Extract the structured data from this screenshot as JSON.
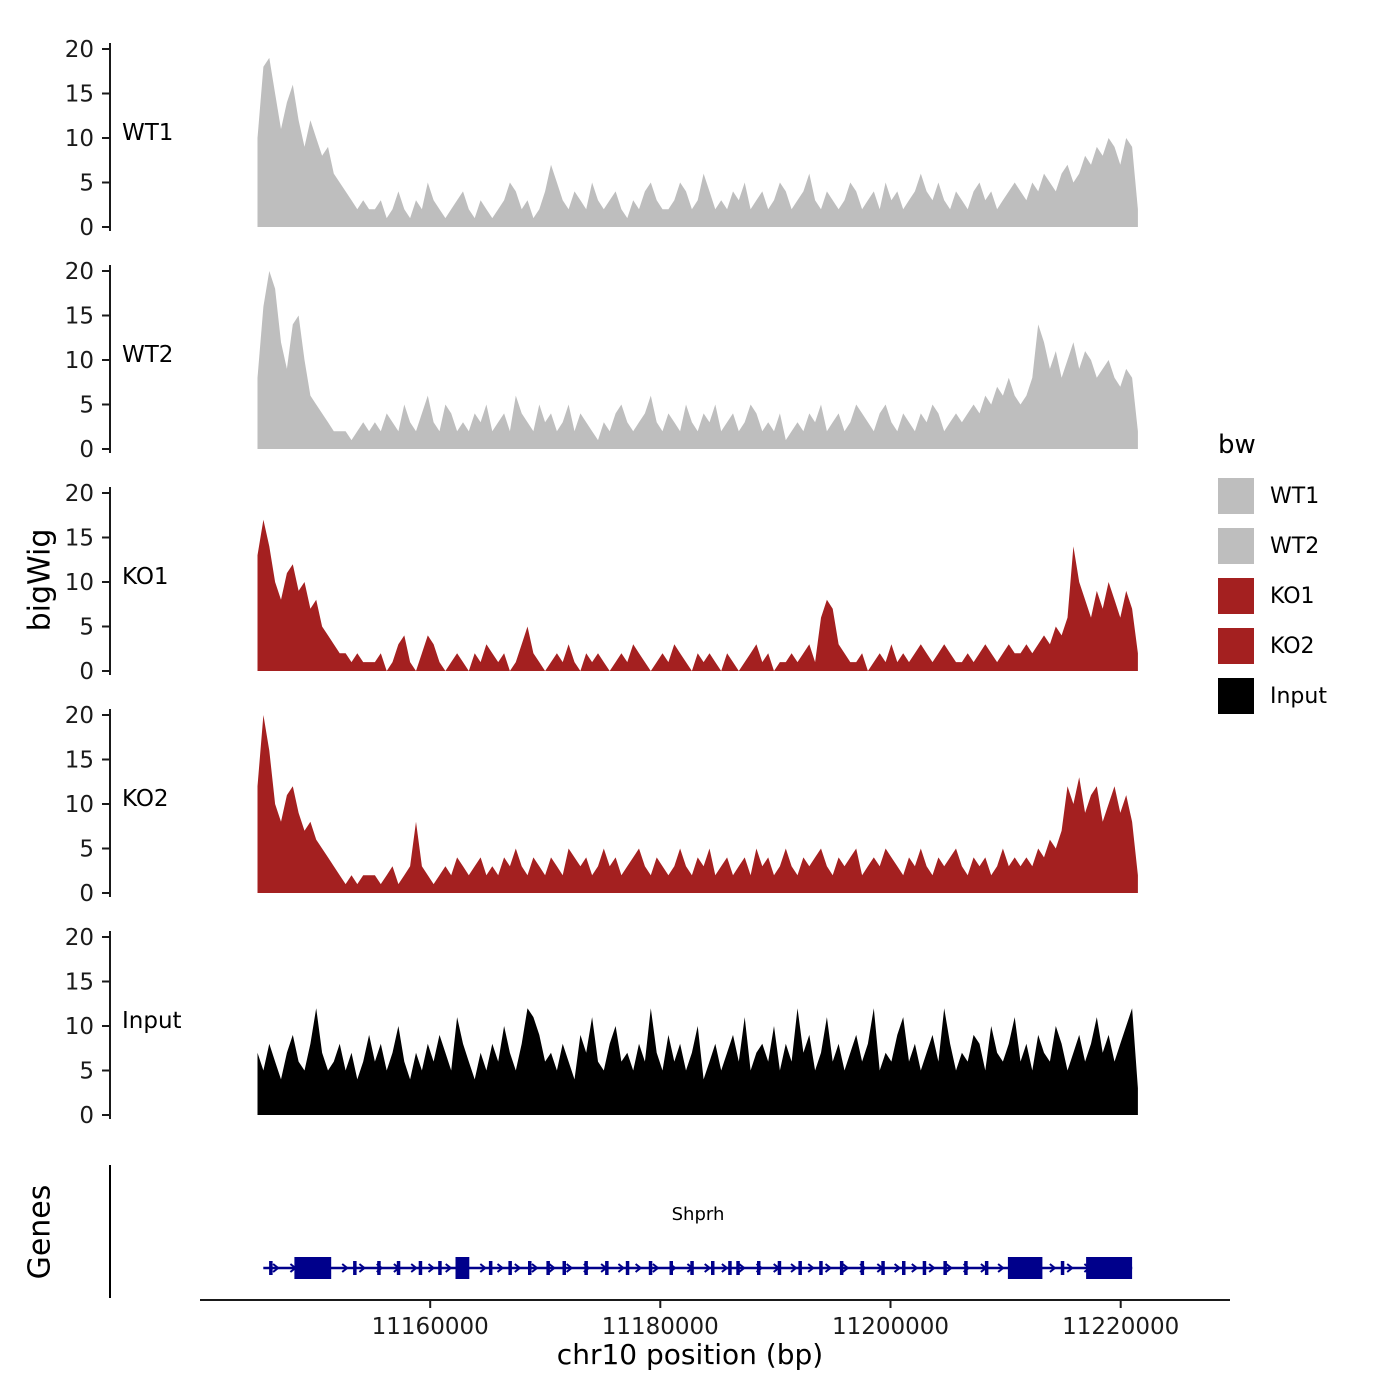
{
  "chart_data": {
    "type": "area",
    "title": "",
    "xlabel": "chr10 position (bp)",
    "ylabel": "bigWig",
    "x_domain": [
      11140000,
      11229500
    ],
    "x_ticks": [
      11160000,
      11180000,
      11200000,
      11220000
    ],
    "y_ticks": [
      0,
      5,
      10,
      15,
      20
    ],
    "y_domain": [
      0,
      22
    ],
    "x_start": 11145000,
    "x_step": 510,
    "axis_color": "#1a1a1a",
    "tracks": [
      {
        "name": "WT1",
        "color": "#bebebe",
        "values": [
          10,
          18,
          19,
          15,
          11,
          14,
          16,
          12,
          9,
          12,
          10,
          8,
          9,
          6,
          5,
          4,
          3,
          2,
          3,
          2,
          2,
          3,
          1,
          2,
          4,
          2,
          1,
          3,
          2,
          5,
          3,
          2,
          1,
          2,
          3,
          4,
          2,
          1,
          3,
          2,
          1,
          2,
          3,
          5,
          4,
          2,
          3,
          1,
          2,
          4,
          7,
          5,
          3,
          2,
          4,
          3,
          2,
          5,
          3,
          2,
          3,
          4,
          2,
          1,
          3,
          2,
          4,
          5,
          3,
          2,
          2,
          3,
          5,
          4,
          2,
          3,
          6,
          4,
          2,
          3,
          2,
          4,
          3,
          5,
          2,
          3,
          4,
          2,
          3,
          5,
          4,
          2,
          3,
          4,
          6,
          3,
          2,
          4,
          3,
          2,
          3,
          5,
          4,
          2,
          3,
          4,
          2,
          5,
          3,
          4,
          2,
          3,
          4,
          6,
          4,
          3,
          5,
          3,
          2,
          4,
          3,
          2,
          4,
          5,
          3,
          4,
          2,
          3,
          4,
          5,
          4,
          3,
          5,
          4,
          6,
          5,
          4,
          6,
          7,
          5,
          6,
          8,
          7,
          9,
          8,
          10,
          9,
          7,
          10,
          9,
          2
        ]
      },
      {
        "name": "WT2",
        "color": "#bebebe",
        "values": [
          8,
          16,
          20,
          18,
          12,
          9,
          14,
          15,
          10,
          6,
          5,
          4,
          3,
          2,
          2,
          2,
          1,
          2,
          3,
          2,
          3,
          2,
          4,
          3,
          2,
          5,
          3,
          2,
          4,
          6,
          3,
          2,
          5,
          4,
          2,
          3,
          2,
          4,
          3,
          5,
          2,
          3,
          4,
          2,
          6,
          4,
          3,
          2,
          5,
          3,
          4,
          2,
          3,
          5,
          2,
          4,
          3,
          2,
          1,
          3,
          2,
          4,
          5,
          3,
          2,
          3,
          4,
          6,
          3,
          2,
          4,
          3,
          2,
          5,
          3,
          2,
          4,
          3,
          5,
          2,
          3,
          4,
          2,
          3,
          5,
          4,
          2,
          3,
          2,
          4,
          1,
          2,
          3,
          2,
          4,
          3,
          5,
          2,
          3,
          4,
          2,
          3,
          5,
          4,
          3,
          2,
          4,
          5,
          3,
          2,
          4,
          3,
          2,
          4,
          3,
          5,
          4,
          2,
          3,
          4,
          3,
          4,
          5,
          4,
          6,
          5,
          7,
          6,
          8,
          6,
          5,
          6,
          8,
          14,
          12,
          9,
          11,
          8,
          10,
          12,
          9,
          11,
          10,
          8,
          9,
          10,
          8,
          7,
          9,
          8,
          2
        ]
      },
      {
        "name": "KO1",
        "color": "#a42020",
        "values": [
          13,
          17,
          14,
          10,
          8,
          11,
          12,
          9,
          10,
          7,
          8,
          5,
          4,
          3,
          2,
          2,
          1,
          2,
          1,
          1,
          1,
          2,
          0,
          1,
          3,
          4,
          1,
          0,
          2,
          4,
          3,
          1,
          0,
          1,
          2,
          1,
          0,
          2,
          1,
          3,
          2,
          1,
          2,
          0,
          1,
          3,
          5,
          2,
          1,
          0,
          1,
          2,
          1,
          3,
          1,
          0,
          2,
          1,
          2,
          1,
          0,
          1,
          2,
          1,
          3,
          2,
          1,
          0,
          1,
          2,
          1,
          3,
          2,
          1,
          0,
          2,
          1,
          2,
          1,
          0,
          2,
          1,
          0,
          1,
          2,
          3,
          1,
          2,
          0,
          1,
          1,
          2,
          1,
          2,
          3,
          1,
          6,
          8,
          7,
          3,
          2,
          1,
          1,
          2,
          0,
          1,
          2,
          1,
          3,
          1,
          2,
          1,
          2,
          3,
          2,
          1,
          2,
          3,
          2,
          1,
          1,
          2,
          1,
          2,
          3,
          2,
          1,
          2,
          3,
          2,
          2,
          3,
          2,
          3,
          4,
          3,
          5,
          4,
          6,
          14,
          10,
          8,
          6,
          9,
          7,
          10,
          8,
          6,
          9,
          7,
          2
        ]
      },
      {
        "name": "KO2",
        "color": "#a42020",
        "values": [
          12,
          20,
          16,
          10,
          8,
          11,
          12,
          9,
          7,
          8,
          6,
          5,
          4,
          3,
          2,
          1,
          2,
          1,
          2,
          2,
          2,
          1,
          2,
          3,
          1,
          2,
          3,
          8,
          3,
          2,
          1,
          2,
          3,
          2,
          4,
          3,
          2,
          3,
          4,
          2,
          3,
          2,
          4,
          3,
          5,
          3,
          2,
          4,
          3,
          2,
          4,
          3,
          2,
          5,
          4,
          3,
          4,
          2,
          3,
          5,
          3,
          4,
          2,
          3,
          4,
          5,
          3,
          2,
          4,
          3,
          2,
          3,
          5,
          3,
          2,
          4,
          3,
          5,
          2,
          3,
          4,
          2,
          3,
          4,
          2,
          5,
          3,
          4,
          2,
          3,
          5,
          3,
          2,
          4,
          3,
          4,
          5,
          3,
          2,
          4,
          3,
          4,
          5,
          2,
          3,
          4,
          3,
          5,
          4,
          3,
          2,
          4,
          3,
          5,
          3,
          2,
          4,
          3,
          4,
          5,
          3,
          2,
          4,
          3,
          4,
          2,
          3,
          5,
          3,
          4,
          3,
          4,
          3,
          5,
          4,
          6,
          5,
          7,
          12,
          10,
          13,
          9,
          11,
          12,
          8,
          10,
          12,
          9,
          11,
          8,
          2
        ]
      },
      {
        "name": "Input",
        "color": "#000000",
        "values": [
          7,
          5,
          8,
          6,
          4,
          7,
          9,
          6,
          5,
          8,
          12,
          7,
          5,
          6,
          8,
          5,
          7,
          4,
          6,
          9,
          6,
          8,
          5,
          7,
          10,
          6,
          4,
          7,
          5,
          8,
          6,
          9,
          7,
          5,
          11,
          8,
          6,
          4,
          7,
          5,
          8,
          6,
          10,
          7,
          5,
          8,
          12,
          11,
          9,
          6,
          7,
          5,
          8,
          6,
          4,
          9,
          7,
          11,
          6,
          5,
          8,
          10,
          6,
          7,
          5,
          8,
          6,
          12,
          7,
          5,
          9,
          6,
          8,
          5,
          7,
          10,
          4,
          6,
          8,
          5,
          7,
          9,
          6,
          11,
          5,
          7,
          8,
          6,
          10,
          5,
          8,
          6,
          12,
          7,
          9,
          5,
          7,
          11,
          6,
          8,
          5,
          7,
          9,
          6,
          8,
          12,
          5,
          7,
          6,
          9,
          11,
          6,
          8,
          5,
          7,
          9,
          6,
          12,
          8,
          5,
          7,
          6,
          9,
          8,
          5,
          10,
          7,
          6,
          8,
          11,
          6,
          8,
          5,
          9,
          7,
          6,
          10,
          8,
          5,
          7,
          9,
          6,
          8,
          11,
          7,
          9,
          6,
          8,
          10,
          12,
          3
        ]
      }
    ],
    "genes": {
      "panel_label": "Genes",
      "gene": {
        "name": "Shprh",
        "start": 11145500,
        "end": 11221000,
        "strand": "+",
        "color": "#00008b",
        "exons_small": [
          [
            11146000,
            11146300
          ],
          [
            11153300,
            11153600
          ],
          [
            11155400,
            11155700
          ],
          [
            11157100,
            11157400
          ],
          [
            11159000,
            11159300
          ],
          [
            11160700,
            11161000
          ],
          [
            11165100,
            11165400
          ],
          [
            11166800,
            11167100
          ],
          [
            11168500,
            11168800
          ],
          [
            11170100,
            11170400
          ],
          [
            11171500,
            11171800
          ],
          [
            11173400,
            11173700
          ],
          [
            11175200,
            11175500
          ],
          [
            11177000,
            11177300
          ],
          [
            11179000,
            11179300
          ],
          [
            11180800,
            11181100
          ],
          [
            11182600,
            11182900
          ],
          [
            11184400,
            11184700
          ],
          [
            11185900,
            11186200
          ],
          [
            11186600,
            11186900
          ],
          [
            11188400,
            11188700
          ],
          [
            11190200,
            11190500
          ],
          [
            11192000,
            11192300
          ],
          [
            11193800,
            11194100
          ],
          [
            11195600,
            11195900
          ],
          [
            11197400,
            11197700
          ],
          [
            11199200,
            11199500
          ],
          [
            11201000,
            11201300
          ],
          [
            11202800,
            11203100
          ],
          [
            11204600,
            11204900
          ],
          [
            11206400,
            11206700
          ],
          [
            11208200,
            11208500
          ],
          [
            11214800,
            11215100
          ]
        ],
        "exons_large": [
          [
            11148200,
            11151400
          ],
          [
            11162200,
            11163400
          ],
          [
            11210200,
            11213200
          ],
          [
            11217000,
            11221000
          ]
        ]
      }
    },
    "legend": {
      "title": "bw",
      "entries": [
        {
          "label": "WT1",
          "color": "#bebebe"
        },
        {
          "label": "WT2",
          "color": "#bebebe"
        },
        {
          "label": "KO1",
          "color": "#a42020"
        },
        {
          "label": "KO2",
          "color": "#a42020"
        },
        {
          "label": "Input",
          "color": "#000000"
        }
      ]
    }
  }
}
